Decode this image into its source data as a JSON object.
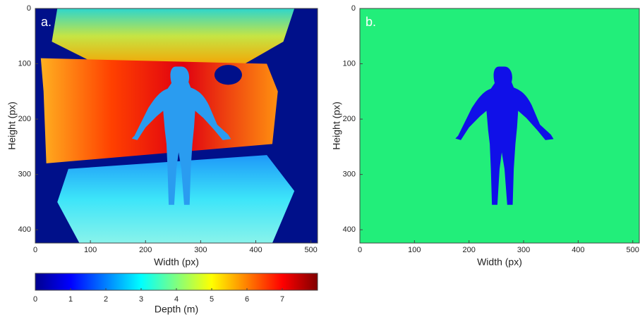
{
  "chart_data": [
    {
      "type": "heatmap",
      "panel_label": "a.",
      "xlabel": "Width (px)",
      "ylabel": "Height (px)",
      "xlim": [
        0,
        512
      ],
      "ylim": [
        0,
        424
      ],
      "xticks": [
        0,
        100,
        200,
        300,
        400,
        500
      ],
      "yticks": [
        0,
        100,
        200,
        300,
        400
      ],
      "colormap": "jet",
      "colorbar": {
        "label": "Depth (m)",
        "lim": [
          0,
          8
        ],
        "ticks": [
          0,
          1,
          2,
          3,
          4,
          5,
          6,
          7
        ]
      }
    },
    {
      "type": "heatmap",
      "panel_label": "b.",
      "xlabel": "Width (px)",
      "ylabel": "Height (px)",
      "xlim": [
        0,
        512
      ],
      "ylim": [
        0,
        424
      ],
      "xticks": [
        0,
        100,
        200,
        300,
        400,
        500
      ],
      "yticks": [
        0,
        100,
        200,
        300,
        400
      ],
      "colors": [
        "#22ee7a",
        "#1010e8"
      ]
    }
  ]
}
